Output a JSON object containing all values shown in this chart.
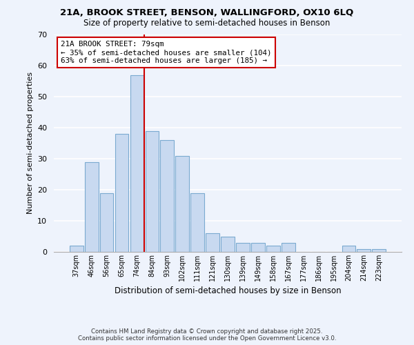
{
  "title1": "21A, BROOK STREET, BENSON, WALLINGFORD, OX10 6LQ",
  "title2": "Size of property relative to semi-detached houses in Benson",
  "xlabel": "Distribution of semi-detached houses by size in Benson",
  "ylabel": "Number of semi-detached properties",
  "categories": [
    "37sqm",
    "46sqm",
    "56sqm",
    "65sqm",
    "74sqm",
    "84sqm",
    "93sqm",
    "102sqm",
    "111sqm",
    "121sqm",
    "130sqm",
    "139sqm",
    "149sqm",
    "158sqm",
    "167sqm",
    "177sqm",
    "186sqm",
    "195sqm",
    "204sqm",
    "214sqm",
    "223sqm"
  ],
  "values": [
    2,
    29,
    19,
    38,
    57,
    39,
    36,
    31,
    19,
    6,
    5,
    3,
    3,
    2,
    3,
    0,
    0,
    0,
    2,
    1,
    1
  ],
  "bar_color": "#c8d9f0",
  "bar_edge_color": "#7aaad0",
  "property_line_idx": 4.5,
  "property_line_color": "#cc0000",
  "annotation_text": "21A BROOK STREET: 79sqm\n← 35% of semi-detached houses are smaller (104)\n63% of semi-detached houses are larger (185) →",
  "annotation_box_color": "#ffffff",
  "annotation_box_edge": "#cc0000",
  "ylim": [
    0,
    70
  ],
  "yticks": [
    0,
    10,
    20,
    30,
    40,
    50,
    60,
    70
  ],
  "footnote": "Contains HM Land Registry data © Crown copyright and database right 2025.\nContains public sector information licensed under the Open Government Licence v3.0.",
  "background_color": "#eef3fc",
  "grid_color": "#ffffff"
}
